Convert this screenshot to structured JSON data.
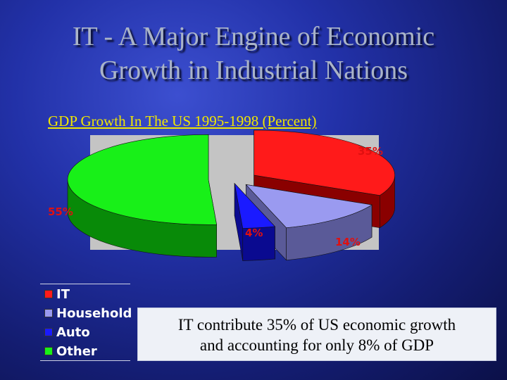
{
  "slide": {
    "title_line1": "IT - A  Major Engine of Economic",
    "title_line2": "Growth in Industrial Nations",
    "chart_heading": "GDP Growth In The US 1995-1998 (Percent)",
    "note_line1": "IT contribute 35% of US economic growth",
    "note_line2": "and accounting for only 8% of GDP"
  },
  "chart_data": {
    "type": "pie",
    "title": "GDP Growth In The US 1995-1998 (Percent)",
    "categories": [
      "IT",
      "Household",
      "Auto",
      "Other"
    ],
    "values": [
      35,
      14,
      4,
      55
    ],
    "labels": [
      "35%",
      "14%",
      "4%",
      "55%"
    ],
    "colors": [
      "#ff1a1a",
      "#9a9af0",
      "#1a1aff",
      "#18f018"
    ],
    "side_colors": [
      "#8a0000",
      "#5a5a98",
      "#0a0a90",
      "#088a08"
    ],
    "legend_position": "bottom-left",
    "exploded": true,
    "three_d": true
  }
}
